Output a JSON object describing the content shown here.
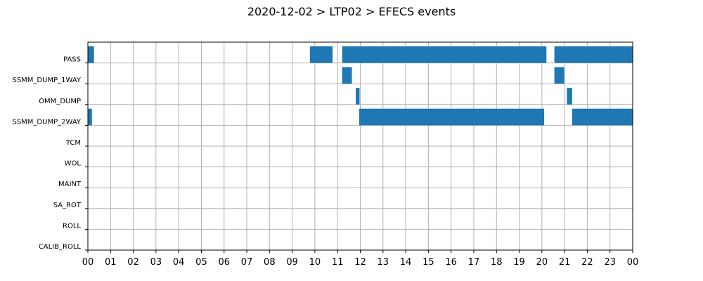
{
  "chart_data": {
    "type": "timeline",
    "title": "2020-12-02 > LTP02 > EFECS events",
    "xlabel": "",
    "ylabel": "",
    "x_unit": "hour of day",
    "xlim": [
      0,
      24
    ],
    "x_tick_labels": [
      "00",
      "01",
      "02",
      "03",
      "04",
      "05",
      "06",
      "07",
      "08",
      "09",
      "10",
      "11",
      "12",
      "13",
      "14",
      "15",
      "16",
      "17",
      "18",
      "19",
      "20",
      "21",
      "22",
      "23",
      "00"
    ],
    "grid": true,
    "categories": [
      "PASS",
      "SSMM_DUMP_1WAY",
      "OMM_DUMP",
      "SSMM_DUMP_2WAY",
      "TCM",
      "WOL",
      "MAINT",
      "SA_ROT",
      "ROLL",
      "CALIB_ROLL"
    ],
    "color": "#1f77b4",
    "events": [
      {
        "category": "PASS",
        "start": 0.0,
        "end": 0.27
      },
      {
        "category": "PASS",
        "start": 9.78,
        "end": 10.78
      },
      {
        "category": "PASS",
        "start": 11.2,
        "end": 20.2
      },
      {
        "category": "PASS",
        "start": 20.55,
        "end": 24.0
      },
      {
        "category": "SSMM_DUMP_1WAY",
        "start": 11.2,
        "end": 11.63
      },
      {
        "category": "SSMM_DUMP_1WAY",
        "start": 20.55,
        "end": 20.98
      },
      {
        "category": "OMM_DUMP",
        "start": 11.8,
        "end": 11.97
      },
      {
        "category": "OMM_DUMP",
        "start": 21.1,
        "end": 21.33
      },
      {
        "category": "SSMM_DUMP_2WAY",
        "start": 0.0,
        "end": 0.18
      },
      {
        "category": "SSMM_DUMP_2WAY",
        "start": 11.95,
        "end": 20.1
      },
      {
        "category": "SSMM_DUMP_2WAY",
        "start": 21.33,
        "end": 24.0
      }
    ]
  }
}
